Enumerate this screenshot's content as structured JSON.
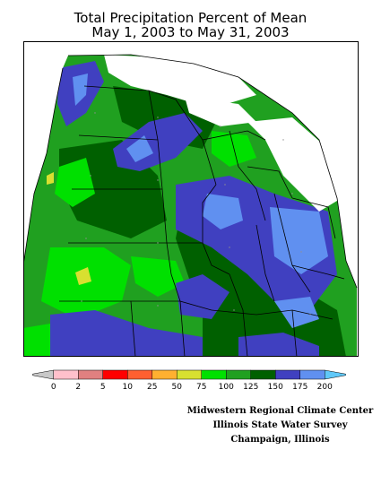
{
  "header": {
    "title_line1": "Total Precipitation Percent of Mean",
    "title_line2": "May 1, 2003 to May 31, 2003"
  },
  "legend": {
    "labels": [
      "0",
      "2",
      "5",
      "10",
      "25",
      "50",
      "75",
      "100",
      "125",
      "150",
      "175",
      "200"
    ],
    "colors": [
      "#c8c8c8",
      "#ffc0cb",
      "#e08080",
      "#ff0000",
      "#ff6030",
      "#ffb030",
      "#d8e030",
      "#00e000",
      "#20a020",
      "#006000",
      "#4040c0",
      "#6090f0",
      "#60c8f8"
    ]
  },
  "palette": {
    "lime": "#00e000",
    "green": "#20a020",
    "darkgreen": "#006000",
    "navy": "#4040c0",
    "blue": "#6090f0",
    "yellow": "#d8e030",
    "land_blank": "#ffffff"
  },
  "credits": {
    "line1": "Midwestern Regional Climate Center",
    "line2": "Illinois State Water Survey",
    "line3": "Champaign, Illinois"
  }
}
